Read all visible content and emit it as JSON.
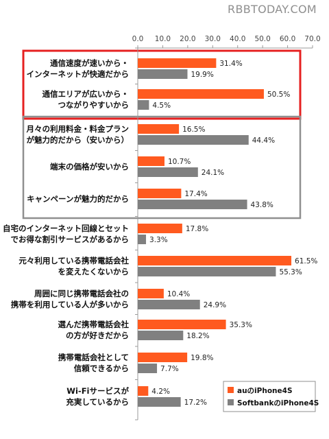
{
  "header": {
    "watermark": "RBBTODAY.COM"
  },
  "colors": {
    "au": "#ff5a1f",
    "softbank": "#808080",
    "highlight_box": "#e62020",
    "group_box": "#8f8f8f",
    "axis": "#999999"
  },
  "chart_data": {
    "type": "bar",
    "orientation": "horizontal",
    "title": "",
    "xlabel": "",
    "ylabel": "",
    "xlim": [
      0,
      70
    ],
    "ticks": [
      0.0,
      10.0,
      20.0,
      30.0,
      40.0,
      50.0,
      60.0,
      70.0
    ],
    "tick_labels": [
      "0.0",
      "10.0",
      "20.0",
      "30.0",
      "40.0",
      "50.0",
      "60.0",
      "70.0"
    ],
    "grid": false,
    "legend_position": "bottom-right",
    "categories": [
      [
        "通信速度が速いから・",
        "インターネットが快適だから"
      ],
      [
        "通信エリアが広いから・",
        "つながりやすいから"
      ],
      [
        "月々の利用料金・料金プラン",
        "が魅力的だから（安いから）"
      ],
      [
        "端末の価格が安いから"
      ],
      [
        "キャンペーンが魅力的だから"
      ],
      [
        "自宅のインターネット回線とセット",
        "でお得な割引サービスがあるから"
      ],
      [
        "元々利用している携帯電話会社",
        "を変えたくないから"
      ],
      [
        "周囲に同じ携帯電話会社の",
        "携帯を利用している人が多いから"
      ],
      [
        "選んだ携帯電話会社",
        "の方が好きだから"
      ],
      [
        "携帯電話会社として",
        "信頼できるから"
      ],
      [
        "Wi-Fiサービスが",
        "充実しているから"
      ]
    ],
    "series": [
      {
        "name": "auのiPhone4S",
        "color": "#ff5a1f",
        "values": [
          31.4,
          50.5,
          16.5,
          10.7,
          17.4,
          17.8,
          61.5,
          10.4,
          35.3,
          19.8,
          4.2
        ],
        "labels": [
          "31.4%",
          "50.5%",
          "16.5%",
          "10.7%",
          "17.4%",
          "17.8%",
          "61.5%",
          "10.4%",
          "35.3%",
          "19.8%",
          "4.2%"
        ]
      },
      {
        "name": "SoftbankのiPhone4S",
        "color": "#808080",
        "values": [
          19.9,
          4.5,
          44.4,
          24.1,
          43.8,
          3.3,
          55.3,
          24.9,
          18.2,
          7.7,
          17.2
        ],
        "labels": [
          "19.9%",
          "4.5%",
          "44.4%",
          "24.1%",
          "43.8%",
          "3.3%",
          "55.3%",
          "24.9%",
          "18.2%",
          "7.7%",
          "17.2%"
        ]
      }
    ],
    "groups": [
      {
        "categories": [
          0,
          1
        ],
        "style": "red-box"
      },
      {
        "categories": [
          2,
          3,
          4
        ],
        "style": "gray-box"
      }
    ]
  }
}
